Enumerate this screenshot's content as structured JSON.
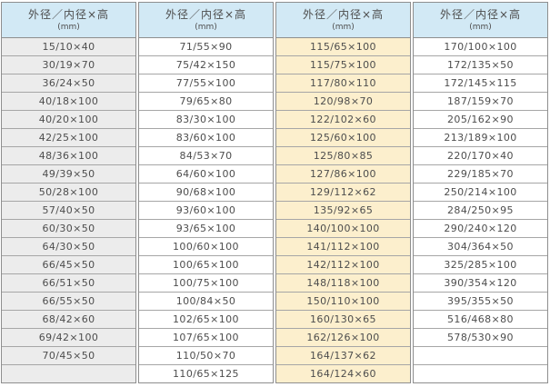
{
  "table": {
    "header": {
      "title": "外径／内径×高",
      "unit": "(mm)"
    },
    "columns": [
      {
        "name": "column-1",
        "bg": "#ececec",
        "rows": [
          "15/10×40",
          "30/19×70",
          "36/24×50",
          "40/18×100",
          "40/20×100",
          "42/25×100",
          "48/36×100",
          "49/39×50",
          "50/28×100",
          "57/40×50",
          "60/30×50",
          "64/30×50",
          "66/45×50",
          "66/51×50",
          "66/55×50",
          "68/42×60",
          "69/42×100",
          "70/45×50",
          ""
        ]
      },
      {
        "name": "column-2",
        "bg": "#ffffff",
        "rows": [
          "71/55×90",
          "75/42×150",
          "77/55×100",
          "79/65×80",
          "83/30×100",
          "83/60×100",
          "84/53×70",
          "64/60×100",
          "90/68×100",
          "93/60×100",
          "93/65×100",
          "100/60×100",
          "100/65×100",
          "100/75×100",
          "100/84×50",
          "102/65×100",
          "107/65×100",
          "110/50×70",
          "110/65×125"
        ]
      },
      {
        "name": "column-3",
        "bg": "#fcefcd",
        "rows": [
          "115/65×100",
          "115/75×100",
          "117/80×110",
          "120/98×70",
          "122/102×60",
          "125/60×100",
          "125/80×85",
          "127/86×100",
          "129/112×62",
          "135/92×65",
          "140/100×100",
          "141/112×100",
          "142/112×100",
          "148/118×100",
          "150/110×100",
          "160/130×65",
          "162/126×100",
          "164/137×62",
          "164/124×60"
        ]
      },
      {
        "name": "column-4",
        "bg": "#ffffff",
        "rows": [
          "170/100×100",
          "172/135×50",
          "172/145×115",
          "187/159×70",
          "205/162×90",
          "213/189×100",
          "220/170×40",
          "229/185×70",
          "250/214×100",
          "284/250×95",
          "290/240×120",
          "304/364×50",
          "325/285×100",
          "390/354×120",
          "395/355×50",
          "516/468×80",
          "578/530×90",
          "",
          ""
        ]
      }
    ]
  },
  "colors": {
    "header_bg": "#d2e9f5",
    "gray_column_bg": "#ececec",
    "cream_column_bg": "#fcefcd",
    "white_column_bg": "#ffffff",
    "border": "#8e8e8e",
    "row_border": "#a6a6a6",
    "text": "#4d4d4d"
  }
}
